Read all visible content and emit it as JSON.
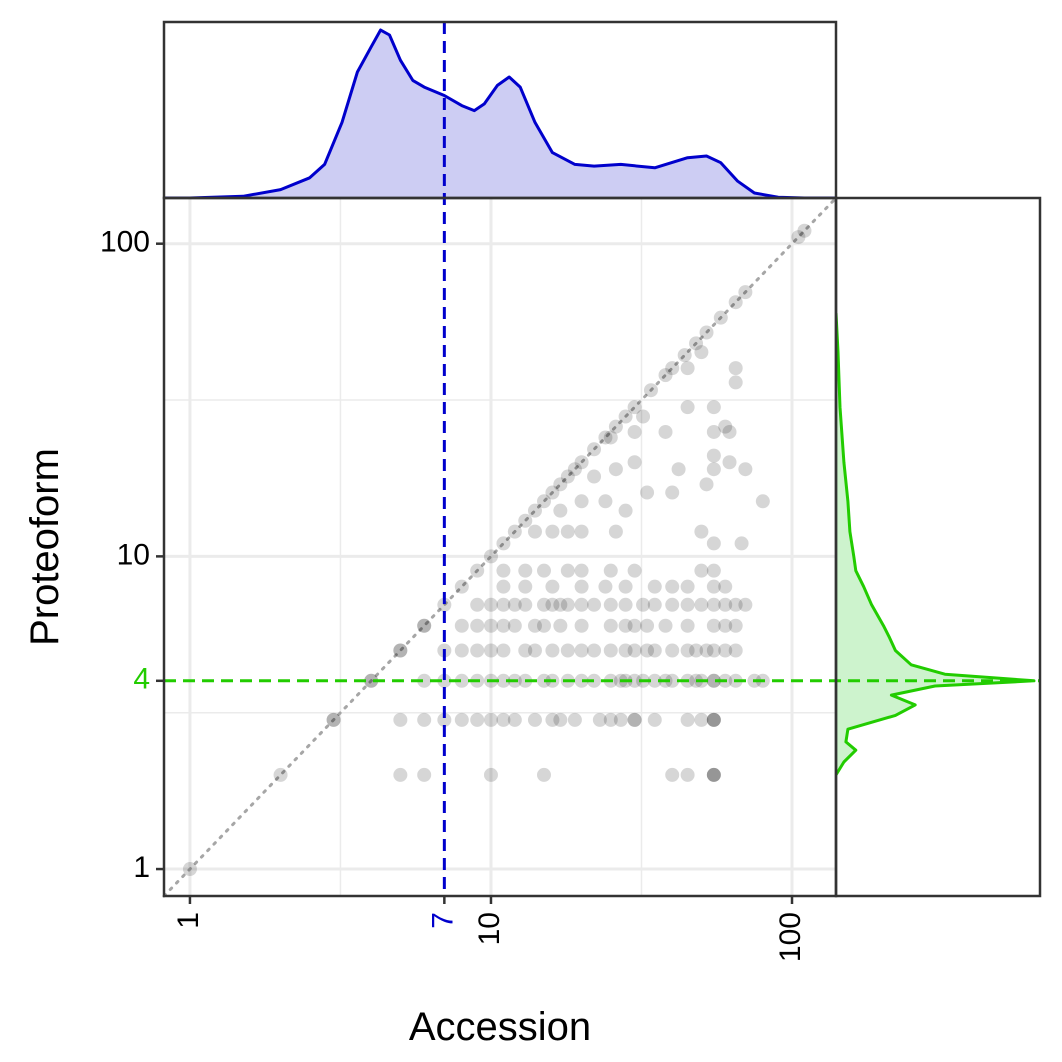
{
  "chart_data": {
    "type": "scatter",
    "xlabel": "Accession",
    "ylabel": "Proteoform",
    "x_scale": "log10",
    "y_scale": "log10",
    "xlim": [
      0.82,
      140
    ],
    "ylim": [
      0.82,
      140
    ],
    "x_ticks": [
      1,
      10,
      100
    ],
    "x_tick_labels": [
      "1",
      "10",
      "100"
    ],
    "y_ticks": [
      1,
      10,
      100
    ],
    "y_tick_labels": [
      "1",
      "10",
      "100"
    ],
    "grid": true,
    "reference_line": "y = x (dotted grey)",
    "x_marker": {
      "value": 7,
      "label": "7",
      "color": "#0000cc"
    },
    "y_marker": {
      "value": 4,
      "label": "4",
      "color": "#22cc00"
    },
    "colors": {
      "x_density_line": "#0000cc",
      "x_density_fill": "#cdcdf3",
      "y_density_line": "#22cc00",
      "y_density_fill": "#cdf3cd",
      "point": "#000000",
      "grid": "#ebebeb",
      "panel_border": "#333333"
    },
    "points": [
      [
        1,
        1
      ],
      [
        2,
        2
      ],
      [
        3,
        3
      ],
      [
        4,
        4
      ],
      [
        5,
        5
      ],
      [
        6,
        6
      ],
      [
        7,
        7
      ],
      [
        8,
        8
      ],
      [
        9,
        9
      ],
      [
        10,
        10
      ],
      [
        11,
        11
      ],
      [
        12,
        12
      ],
      [
        13,
        13
      ],
      [
        14,
        14
      ],
      [
        15,
        15
      ],
      [
        16,
        16
      ],
      [
        17,
        17
      ],
      [
        18,
        18
      ],
      [
        19,
        19
      ],
      [
        20,
        20
      ],
      [
        22,
        22
      ],
      [
        24,
        24
      ],
      [
        26,
        26
      ],
      [
        28,
        28
      ],
      [
        30,
        30
      ],
      [
        34,
        34
      ],
      [
        38,
        38
      ],
      [
        40,
        40
      ],
      [
        44,
        44
      ],
      [
        48,
        48
      ],
      [
        52,
        52
      ],
      [
        58,
        58
      ],
      [
        65,
        65
      ],
      [
        70,
        70
      ],
      [
        105,
        105
      ],
      [
        110,
        110
      ],
      [
        5,
        2
      ],
      [
        6,
        2
      ],
      [
        10,
        2
      ],
      [
        15,
        2
      ],
      [
        40,
        2
      ],
      [
        45,
        2
      ],
      [
        55,
        2
      ],
      [
        55,
        2
      ],
      [
        55,
        2
      ],
      [
        3,
        3
      ],
      [
        5,
        3
      ],
      [
        6,
        3
      ],
      [
        7,
        3
      ],
      [
        8,
        3
      ],
      [
        9,
        3
      ],
      [
        10,
        3
      ],
      [
        11,
        3
      ],
      [
        12,
        3
      ],
      [
        14,
        3
      ],
      [
        16,
        3
      ],
      [
        17,
        3
      ],
      [
        19,
        3
      ],
      [
        23,
        3
      ],
      [
        25,
        3
      ],
      [
        27,
        3
      ],
      [
        30,
        3
      ],
      [
        30,
        3
      ],
      [
        35,
        3
      ],
      [
        45,
        3
      ],
      [
        50,
        3
      ],
      [
        55,
        3
      ],
      [
        55,
        3
      ],
      [
        55,
        3
      ],
      [
        4,
        4
      ],
      [
        6,
        4
      ],
      [
        7,
        4
      ],
      [
        8,
        4
      ],
      [
        9,
        4
      ],
      [
        10,
        4
      ],
      [
        11,
        4
      ],
      [
        12,
        4
      ],
      [
        13,
        4
      ],
      [
        15,
        4
      ],
      [
        16,
        4
      ],
      [
        18,
        4
      ],
      [
        20,
        4
      ],
      [
        22,
        4
      ],
      [
        25,
        4
      ],
      [
        27,
        4
      ],
      [
        28,
        4
      ],
      [
        30,
        4
      ],
      [
        32,
        4
      ],
      [
        35,
        4
      ],
      [
        38,
        4
      ],
      [
        40,
        4
      ],
      [
        45,
        4
      ],
      [
        48,
        4
      ],
      [
        50,
        4
      ],
      [
        55,
        4
      ],
      [
        55,
        4
      ],
      [
        60,
        4
      ],
      [
        65,
        4
      ],
      [
        75,
        4
      ],
      [
        80,
        4
      ],
      [
        5,
        5
      ],
      [
        7,
        5
      ],
      [
        8,
        5
      ],
      [
        9,
        5
      ],
      [
        10,
        5
      ],
      [
        11,
        5
      ],
      [
        13,
        5
      ],
      [
        14,
        5
      ],
      [
        16,
        5
      ],
      [
        18,
        5
      ],
      [
        20,
        5
      ],
      [
        22,
        5
      ],
      [
        25,
        5
      ],
      [
        28,
        5
      ],
      [
        30,
        5
      ],
      [
        33,
        5
      ],
      [
        35,
        5
      ],
      [
        40,
        5
      ],
      [
        45,
        5
      ],
      [
        48,
        5
      ],
      [
        52,
        5
      ],
      [
        55,
        5
      ],
      [
        60,
        5
      ],
      [
        65,
        5
      ],
      [
        6,
        6
      ],
      [
        8,
        6
      ],
      [
        9,
        6
      ],
      [
        10,
        6
      ],
      [
        11,
        6
      ],
      [
        12,
        6
      ],
      [
        14,
        6
      ],
      [
        15,
        6
      ],
      [
        17,
        6
      ],
      [
        20,
        6
      ],
      [
        25,
        6
      ],
      [
        28,
        6
      ],
      [
        30,
        6
      ],
      [
        33,
        6
      ],
      [
        38,
        6
      ],
      [
        45,
        6
      ],
      [
        55,
        6
      ],
      [
        60,
        6
      ],
      [
        65,
        6
      ],
      [
        9,
        7
      ],
      [
        10,
        7
      ],
      [
        11,
        7
      ],
      [
        12,
        7
      ],
      [
        13,
        7
      ],
      [
        15,
        7
      ],
      [
        16,
        7
      ],
      [
        17,
        7
      ],
      [
        18,
        7
      ],
      [
        20,
        7
      ],
      [
        22,
        7
      ],
      [
        25,
        7
      ],
      [
        28,
        7
      ],
      [
        32,
        7
      ],
      [
        35,
        7
      ],
      [
        40,
        7
      ],
      [
        45,
        7
      ],
      [
        50,
        7
      ],
      [
        55,
        7
      ],
      [
        60,
        7
      ],
      [
        65,
        7
      ],
      [
        70,
        7
      ],
      [
        11,
        8
      ],
      [
        13,
        8
      ],
      [
        16,
        8
      ],
      [
        20,
        8
      ],
      [
        24,
        8
      ],
      [
        28,
        8
      ],
      [
        35,
        8
      ],
      [
        40,
        8
      ],
      [
        45,
        8
      ],
      [
        55,
        8
      ],
      [
        60,
        8
      ],
      [
        11,
        9
      ],
      [
        13,
        9
      ],
      [
        15,
        9
      ],
      [
        18,
        9
      ],
      [
        20,
        9
      ],
      [
        25,
        9
      ],
      [
        30,
        9
      ],
      [
        50,
        9
      ],
      [
        55,
        9
      ],
      [
        14,
        12
      ],
      [
        16,
        12
      ],
      [
        18,
        12
      ],
      [
        20,
        12
      ],
      [
        26,
        12
      ],
      [
        50,
        12
      ],
      [
        55,
        11
      ],
      [
        68,
        11
      ],
      [
        17,
        14
      ],
      [
        20,
        15
      ],
      [
        24,
        15
      ],
      [
        28,
        14
      ],
      [
        33,
        16
      ],
      [
        40,
        16
      ],
      [
        52,
        17
      ],
      [
        80,
        15
      ],
      [
        22,
        18
      ],
      [
        26,
        19
      ],
      [
        30,
        20
      ],
      [
        42,
        19
      ],
      [
        55,
        19
      ],
      [
        55,
        21
      ],
      [
        62,
        20
      ],
      [
        70,
        19
      ],
      [
        25,
        24
      ],
      [
        30,
        25
      ],
      [
        38,
        25
      ],
      [
        55,
        25
      ],
      [
        62,
        25
      ],
      [
        32,
        28
      ],
      [
        45,
        30
      ],
      [
        55,
        30
      ],
      [
        60,
        26
      ],
      [
        45,
        40
      ],
      [
        50,
        45
      ],
      [
        65,
        36
      ],
      [
        65,
        40
      ]
    ],
    "x_density": [
      [
        1.0,
        0.0
      ],
      [
        1.5,
        0.01
      ],
      [
        2.0,
        0.05
      ],
      [
        2.5,
        0.12
      ],
      [
        2.8,
        0.2
      ],
      [
        3.2,
        0.45
      ],
      [
        3.6,
        0.75
      ],
      [
        4.0,
        0.9
      ],
      [
        4.3,
        1.0
      ],
      [
        4.6,
        0.97
      ],
      [
        5.0,
        0.82
      ],
      [
        5.5,
        0.7
      ],
      [
        6.0,
        0.66
      ],
      [
        7.0,
        0.61
      ],
      [
        8.0,
        0.55
      ],
      [
        8.8,
        0.52
      ],
      [
        9.5,
        0.56
      ],
      [
        10.5,
        0.67
      ],
      [
        11.5,
        0.72
      ],
      [
        12.5,
        0.66
      ],
      [
        14.0,
        0.45
      ],
      [
        16.0,
        0.27
      ],
      [
        19.0,
        0.2
      ],
      [
        22.0,
        0.19
      ],
      [
        27.0,
        0.2
      ],
      [
        35.0,
        0.18
      ],
      [
        45.0,
        0.24
      ],
      [
        52.0,
        0.25
      ],
      [
        58.0,
        0.21
      ],
      [
        66.0,
        0.1
      ],
      [
        75.0,
        0.03
      ],
      [
        90.0,
        0.005
      ],
      [
        110.0,
        0.0
      ]
    ],
    "y_density": [
      [
        2.0,
        0.0
      ],
      [
        2.2,
        0.04
      ],
      [
        2.4,
        0.1
      ],
      [
        2.55,
        0.05
      ],
      [
        2.8,
        0.06
      ],
      [
        3.1,
        0.3
      ],
      [
        3.35,
        0.4
      ],
      [
        3.6,
        0.28
      ],
      [
        3.85,
        0.5
      ],
      [
        4.0,
        1.0
      ],
      [
        4.2,
        0.55
      ],
      [
        4.5,
        0.38
      ],
      [
        5.0,
        0.3
      ],
      [
        5.5,
        0.27
      ],
      [
        6.0,
        0.24
      ],
      [
        7.0,
        0.18
      ],
      [
        8.0,
        0.14
      ],
      [
        9.0,
        0.1
      ],
      [
        10.0,
        0.09
      ],
      [
        12.0,
        0.07
      ],
      [
        15.0,
        0.06
      ],
      [
        20.0,
        0.04
      ],
      [
        30.0,
        0.02
      ],
      [
        45.0,
        0.01
      ],
      [
        60.0,
        0.0
      ]
    ]
  }
}
